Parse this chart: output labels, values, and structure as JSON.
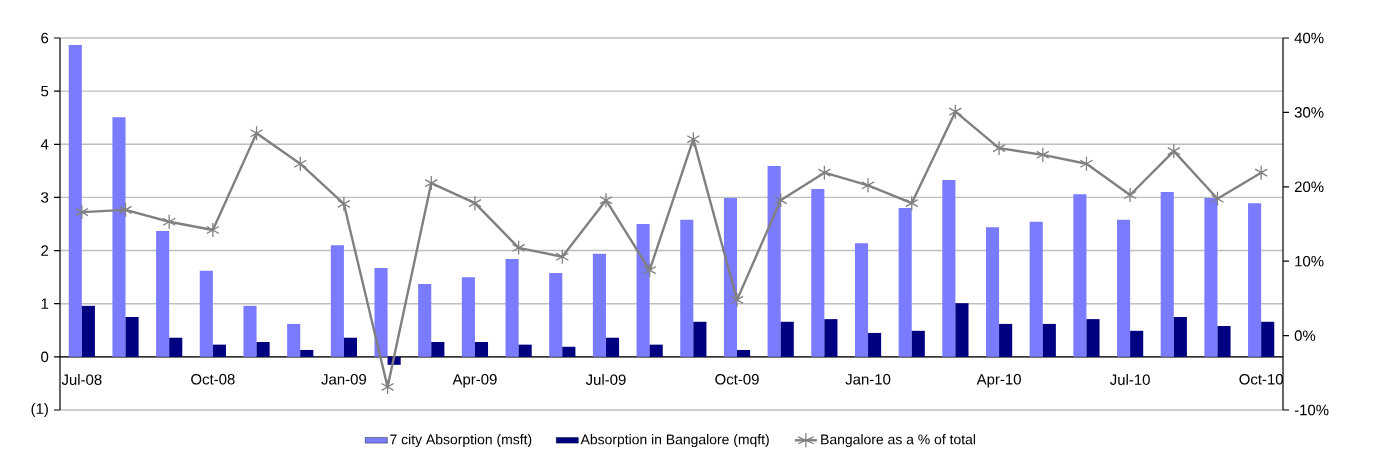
{
  "chart_data": {
    "type": "bar",
    "categories": [
      "Jul-08",
      null,
      null,
      "Oct-08",
      null,
      null,
      "Jan-09",
      null,
      null,
      "Apr-09",
      null,
      null,
      "Jul-09",
      null,
      null,
      "Oct-09",
      null,
      null,
      "Jan-10",
      null,
      null,
      "Apr-10",
      null,
      null,
      "Jul-10",
      null,
      null,
      "Oct-10"
    ],
    "series": [
      {
        "name": "7 city Absorption (msft)",
        "color": "#7b7bff",
        "values": [
          5.87,
          4.51,
          2.37,
          1.62,
          0.96,
          0.62,
          2.1,
          1.67,
          1.37,
          1.5,
          1.84,
          1.58,
          1.94,
          2.5,
          2.58,
          2.99,
          3.59,
          3.16,
          2.14,
          2.8,
          3.33,
          2.44,
          2.54,
          3.06,
          2.58,
          3.1,
          2.99,
          2.89
        ]
      },
      {
        "name": "Absorption in Bangalore (mqft)",
        "color": "#000080",
        "values": [
          0.96,
          0.75,
          0.36,
          0.23,
          0.28,
          0.13,
          0.36,
          -0.15,
          0.28,
          0.28,
          0.23,
          0.19,
          0.36,
          0.23,
          0.66,
          0.13,
          0.66,
          0.71,
          0.45,
          0.49,
          1.01,
          0.62,
          0.62,
          0.71,
          0.49,
          0.75,
          0.58,
          0.66
        ]
      },
      {
        "name": "Bangalore as a % of total",
        "type": "line",
        "axis": "y2",
        "marker": "cross",
        "color": "#808080",
        "values": [
          16.6,
          16.9,
          15.3,
          14.2,
          27.2,
          23.1,
          17.7,
          -6.9,
          20.5,
          17.8,
          11.8,
          10.6,
          18.2,
          8.8,
          26.4,
          4.8,
          18.2,
          21.9,
          20.2,
          17.8,
          30.1,
          25.2,
          24.3,
          23.1,
          18.9,
          24.8,
          18.4,
          21.9
        ]
      }
    ],
    "ylim": [
      -1,
      6
    ],
    "yticks": [
      {
        "value": -1,
        "label": "(1)"
      },
      0,
      1,
      2,
      3,
      4,
      5,
      6
    ],
    "y2lim": [
      -10,
      40
    ],
    "y2ticks": [
      {
        "value": -10,
        "label": "-10%"
      },
      {
        "value": 0,
        "label": "0%"
      },
      {
        "value": 10,
        "label": "10%"
      },
      {
        "value": 20,
        "label": "20%"
      },
      {
        "value": 30,
        "label": "30%"
      },
      {
        "value": 40,
        "label": "40%"
      }
    ],
    "grid": "y",
    "legend": "bottom"
  }
}
